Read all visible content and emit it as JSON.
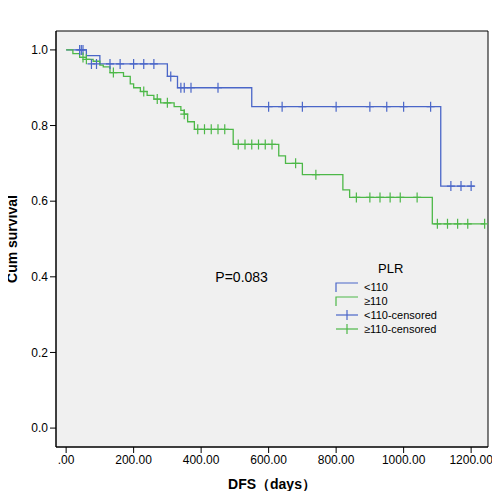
{
  "chart_data": {
    "type": "line",
    "xlabel": "DFS（days）",
    "ylabel": "Cum survival",
    "xlim": [
      -30,
      1250
    ],
    "ylim": [
      -0.05,
      1.05
    ],
    "xticks": [
      {
        "value": 0,
        "label": ".00"
      },
      {
        "value": 200,
        "label": "200.00"
      },
      {
        "value": 400,
        "label": "400.00"
      },
      {
        "value": 600,
        "label": "600.00"
      },
      {
        "value": 800,
        "label": "800.00"
      },
      {
        "value": 1000,
        "label": "1000.00"
      },
      {
        "value": 1200,
        "label": "1200.00"
      }
    ],
    "yticks": [
      {
        "value": 0,
        "label": "0.0"
      },
      {
        "value": 0.2,
        "label": "0.2"
      },
      {
        "value": 0.4,
        "label": "0.4"
      },
      {
        "value": 0.6,
        "label": "0.6"
      },
      {
        "value": 0.8,
        "label": "0.8"
      },
      {
        "value": 1,
        "label": "1.0"
      }
    ],
    "grid": false,
    "legend": "right",
    "legend_title": "PLR",
    "annotations": [
      {
        "text": "P=0.083",
        "x": 520,
        "y": 0.4
      }
    ],
    "series": [
      {
        "name": "<110",
        "type": "line",
        "line_style": "step",
        "color": "#4a66c8",
        "x": [
          0,
          60,
          100,
          300,
          330,
          550,
          1110,
          1210
        ],
        "values": [
          1,
          0.985,
          0.963,
          0.93,
          0.9,
          0.85,
          0.64,
          0.64
        ]
      },
      {
        "name": "≥110",
        "type": "line",
        "line_style": "step",
        "color": "#4db848",
        "x": [
          0,
          20,
          40,
          60,
          80,
          100,
          110,
          130,
          170,
          190,
          200,
          220,
          240,
          260,
          280,
          320,
          340,
          350,
          360,
          380,
          495,
          630,
          650,
          700,
          820,
          840,
          1085,
          1240
        ],
        "values": [
          1,
          0.99,
          0.98,
          0.975,
          0.97,
          0.96,
          0.955,
          0.94,
          0.93,
          0.91,
          0.9,
          0.89,
          0.88,
          0.87,
          0.86,
          0.85,
          0.84,
          0.83,
          0.81,
          0.79,
          0.75,
          0.72,
          0.7,
          0.67,
          0.63,
          0.61,
          0.54,
          0.54
        ]
      },
      {
        "name": "<110-censored",
        "type": "scatter",
        "marker": "plus",
        "color": "#4a66c8",
        "x": [
          40,
          45,
          50,
          75,
          90,
          130,
          160,
          200,
          230,
          260,
          310,
          340,
          350,
          370,
          450,
          600,
          640,
          700,
          800,
          900,
          950,
          1000,
          1080,
          1140,
          1170,
          1200
        ],
        "values": [
          1,
          1,
          1,
          0.963,
          0.963,
          0.963,
          0.963,
          0.963,
          0.963,
          0.963,
          0.93,
          0.9,
          0.9,
          0.9,
          0.9,
          0.85,
          0.85,
          0.85,
          0.85,
          0.85,
          0.85,
          0.85,
          0.85,
          0.64,
          0.64,
          0.64
        ]
      },
      {
        "name": "≥110-censored",
        "type": "scatter",
        "marker": "plus",
        "color": "#4db848",
        "x": [
          50,
          60,
          140,
          230,
          270,
          300,
          350,
          390,
          410,
          430,
          450,
          470,
          510,
          530,
          550,
          570,
          590,
          610,
          680,
          740,
          860,
          900,
          930,
          960,
          990,
          1040,
          1100,
          1130,
          1160,
          1190,
          1240
        ],
        "values": [
          0.98,
          0.975,
          0.94,
          0.89,
          0.87,
          0.86,
          0.83,
          0.79,
          0.79,
          0.79,
          0.79,
          0.79,
          0.75,
          0.75,
          0.75,
          0.75,
          0.75,
          0.75,
          0.7,
          0.67,
          0.61,
          0.61,
          0.61,
          0.61,
          0.61,
          0.61,
          0.54,
          0.54,
          0.54,
          0.54,
          0.54
        ]
      }
    ]
  }
}
